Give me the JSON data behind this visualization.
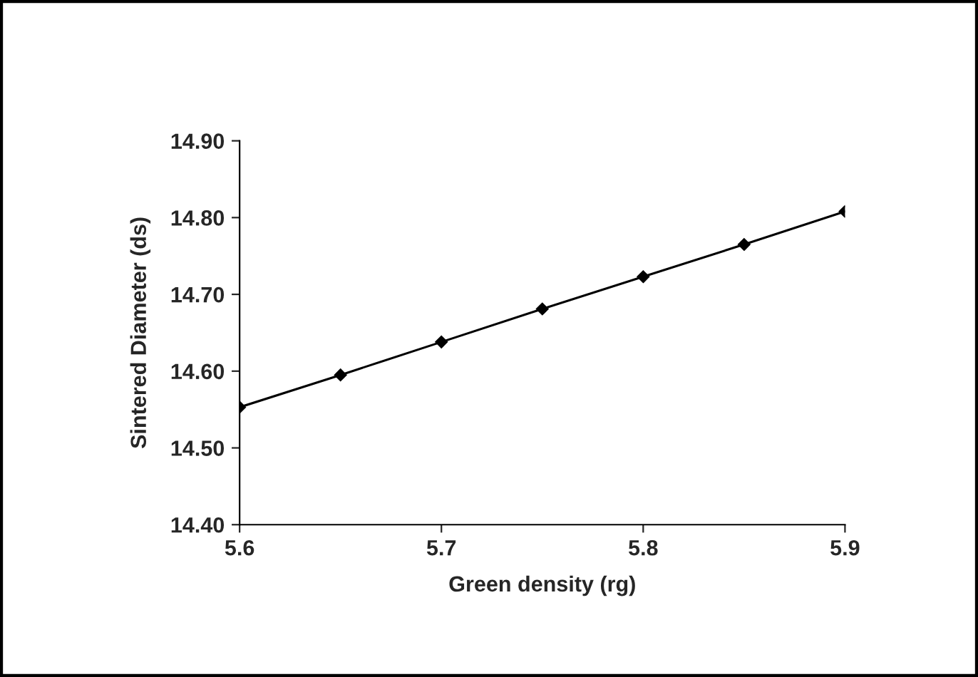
{
  "chart_data": {
    "type": "line",
    "xlabel": "Green density (rg)",
    "ylabel": "Sintered Diameter (ds)",
    "x": [
      5.6,
      5.65,
      5.7,
      5.75,
      5.8,
      5.85,
      5.9
    ],
    "series": [
      {
        "color": "#000000",
        "values": [
          14.553,
          14.595,
          14.638,
          14.681,
          14.723,
          14.765,
          14.808
        ]
      }
    ],
    "xlim": [
      5.6,
      5.9
    ],
    "xticks": [
      5.6,
      5.7,
      5.8,
      5.9
    ],
    "ylim": [
      14.4,
      14.9
    ],
    "yticks": [
      {
        "value": 14.4,
        "label": "14.40"
      },
      {
        "value": 14.5,
        "label": "14.50"
      },
      {
        "value": 14.6,
        "label": "14.60"
      },
      {
        "value": 14.7,
        "label": "14.70"
      },
      {
        "value": 14.8,
        "label": "14.80"
      },
      {
        "value": 14.9,
        "label": "14.90"
      }
    ],
    "marker": "diamond",
    "line_style": "solid",
    "grid": false
  }
}
